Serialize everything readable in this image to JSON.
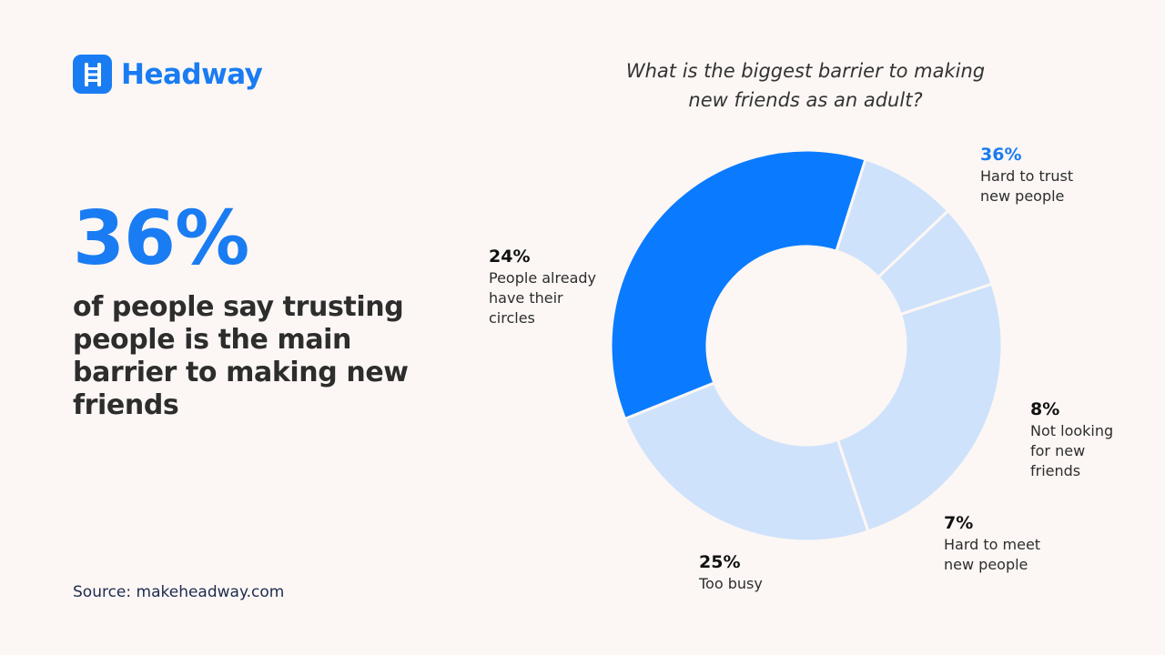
{
  "brand": {
    "name": "Headway",
    "color": "#1a7cf2"
  },
  "hero": {
    "stat": "36%",
    "text": "of people say trusting people is the main barrier to making new friends"
  },
  "source": "Source: makeheadway.com",
  "chart_data": {
    "type": "pie",
    "title": "What is the biggest barrier to making new friends as an adult?",
    "donut": true,
    "slices": [
      {
        "label": "Hard to trust new people",
        "value": 36,
        "value_label": "36%",
        "color": "#0a7bff",
        "highlight": true
      },
      {
        "label": "Not looking for new friends",
        "value": 8,
        "value_label": "8%",
        "color": "#cfe2fb"
      },
      {
        "label": "Hard to meet new people",
        "value": 7,
        "value_label": "7%",
        "color": "#cfe2fb"
      },
      {
        "label": "Too busy",
        "value": 25,
        "value_label": "25%",
        "color": "#cfe2fb"
      },
      {
        "label": "People already have their circles",
        "value": 24,
        "value_label": "24%",
        "color": "#cfe2fb"
      }
    ]
  }
}
